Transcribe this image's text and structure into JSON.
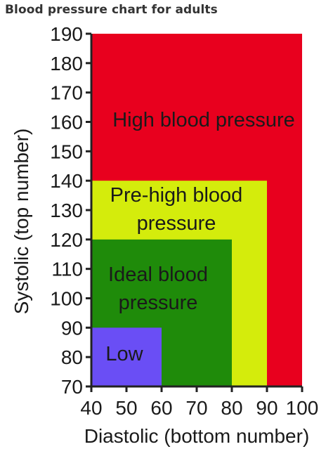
{
  "page_title": "Blood pressure chart for adults",
  "chart_data": {
    "type": "area",
    "title": "Blood pressure chart for adults",
    "xlabel": "Diastolic (bottom number)",
    "ylabel": "Systolic (top number)",
    "xlim": [
      40,
      100
    ],
    "ylim": [
      70,
      190
    ],
    "xticks": [
      40,
      50,
      60,
      70,
      80,
      90,
      100
    ],
    "yticks": [
      70,
      80,
      90,
      100,
      110,
      120,
      130,
      140,
      150,
      160,
      170,
      180,
      190
    ],
    "regions": [
      {
        "label": "High blood pressure",
        "x": [
          40,
          100
        ],
        "y": [
          70,
          190
        ],
        "color": "#e8001e"
      },
      {
        "label": "Pre-high blood pressure",
        "x": [
          40,
          90
        ],
        "y": [
          70,
          140
        ],
        "color": "#d4ec0c"
      },
      {
        "label": "Ideal blood pressure",
        "x": [
          40,
          80
        ],
        "y": [
          70,
          120
        ],
        "color": "#1f8b0a"
      },
      {
        "label": "Low",
        "x": [
          40,
          60
        ],
        "y": [
          70,
          90
        ],
        "color": "#6a4ef5"
      }
    ]
  }
}
